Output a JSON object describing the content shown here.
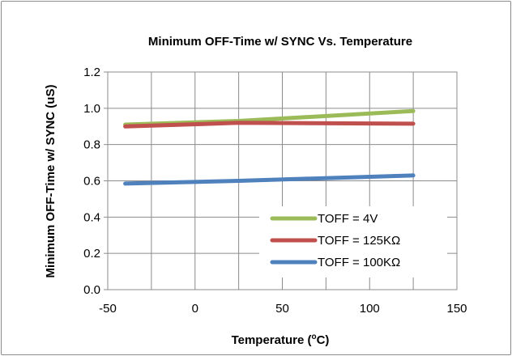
{
  "chart_data": {
    "type": "line",
    "title": "Minimum OFF-Time w/ SYNC Vs. Temperature",
    "xlabel": "Temperature (",
    "xlabel_sup": "o",
    "xlabel_end": "C)",
    "ylabel": "Minimum OFF-Time w/ SYNC (uS)",
    "xlim": [
      -50,
      150
    ],
    "ylim": [
      0,
      1.2
    ],
    "x_ticks": [
      "-50",
      "0",
      "50",
      "100",
      "150"
    ],
    "y_ticks": [
      "0.0",
      "0.2",
      "0.4",
      "0.6",
      "0.8",
      "1.0",
      "1.2"
    ],
    "x_tick_values": [
      -50,
      0,
      50,
      100,
      150
    ],
    "y_tick_values": [
      0,
      0.2,
      0.4,
      0.6,
      0.8,
      1.0,
      1.2
    ],
    "x_gridlines": [
      -25,
      0,
      25,
      50,
      75,
      100,
      125,
      150
    ],
    "grid": true,
    "legend_position": "bottom-right",
    "series": [
      {
        "name": "TOFF = 4V",
        "color": "#9bbb59",
        "x": [
          -40,
          25,
          125
        ],
        "values": [
          0.91,
          0.93,
          0.985
        ]
      },
      {
        "name": "TOFF = 125KΩ",
        "color": "#c0504d",
        "x": [
          -40,
          25,
          125
        ],
        "values": [
          0.9,
          0.92,
          0.915
        ]
      },
      {
        "name": "TOFF = 100KΩ",
        "color": "#4f81bd",
        "x": [
          -40,
          25,
          125
        ],
        "values": [
          0.585,
          0.6,
          0.63
        ]
      }
    ]
  }
}
